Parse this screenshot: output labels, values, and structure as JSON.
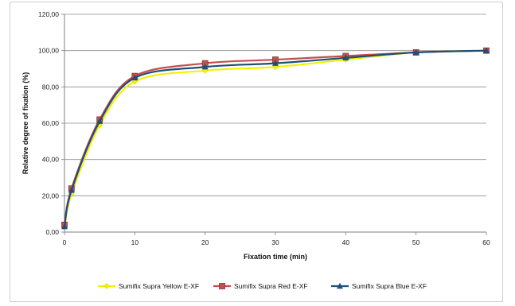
{
  "chart_data": {
    "type": "line",
    "title": "",
    "xlabel": "Fixation time (min)",
    "ylabel": "Relative degree of fixation (%)",
    "xlim": [
      0,
      60
    ],
    "ylim": [
      0,
      120
    ],
    "x_ticks": [
      0,
      10,
      20,
      30,
      40,
      50,
      60
    ],
    "x_tick_labels": [
      "0",
      "10",
      "20",
      "30",
      "40",
      "50",
      "60"
    ],
    "y_ticks": [
      0,
      20,
      40,
      60,
      80,
      100,
      120
    ],
    "y_tick_labels": [
      "0,00",
      "20,00",
      "40,00",
      "60,00",
      "80,00",
      "100,00",
      "120,00"
    ],
    "grid": "horizontal",
    "legend_position": "bottom",
    "x": [
      0,
      1,
      5,
      10,
      20,
      30,
      40,
      50,
      60
    ],
    "series": [
      {
        "name": "Sumifix Supra Yellow E-XF",
        "color": "#f2f200",
        "marker": "diamond",
        "values": [
          3,
          21,
          59,
          83,
          89,
          91,
          95,
          99,
          100
        ]
      },
      {
        "name": "Sumifix Supra Red E-XF",
        "color": "#c0504d",
        "marker": "square",
        "values": [
          4,
          24,
          62,
          86,
          93,
          95,
          97,
          99,
          100
        ]
      },
      {
        "name": "Sumifix Supra Blue E-XF",
        "color": "#1f4e79",
        "marker": "triangle",
        "values": [
          3,
          23,
          61,
          85,
          91,
          93,
          96,
          99,
          100
        ]
      }
    ]
  }
}
